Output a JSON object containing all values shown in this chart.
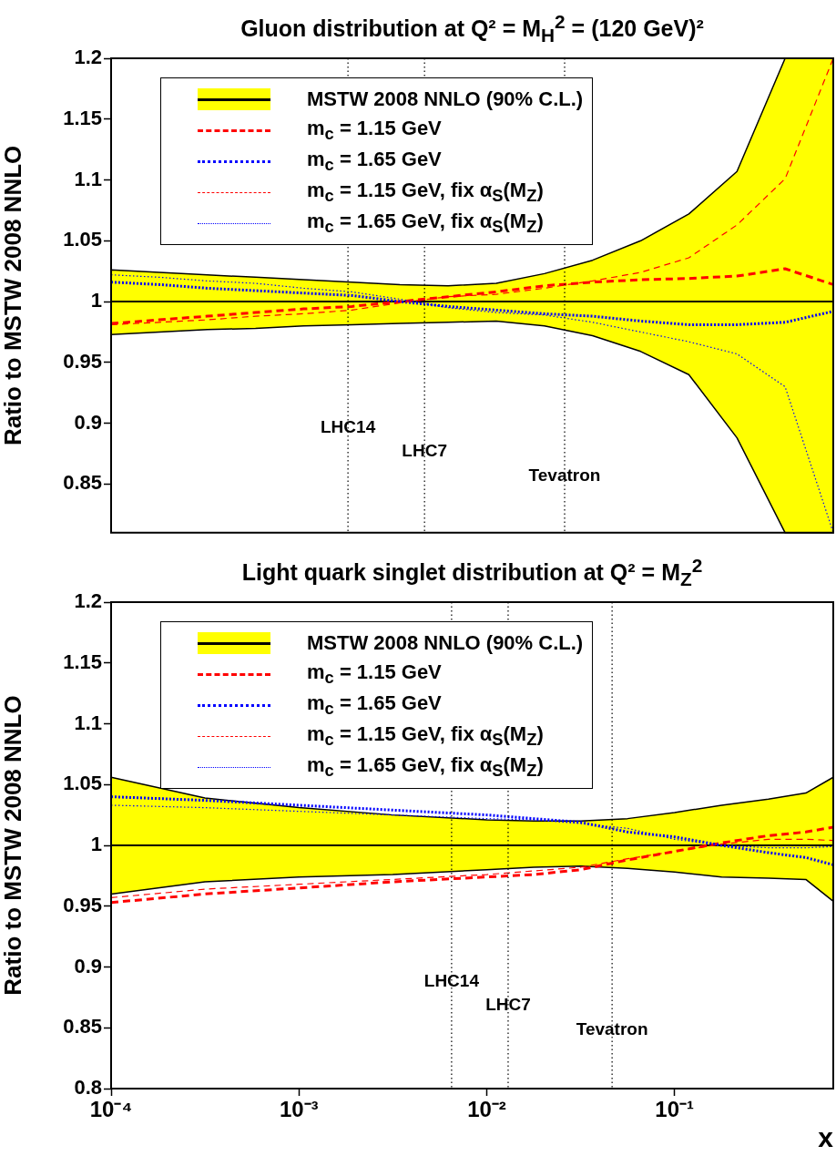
{
  "chart_data": [
    {
      "type": "line",
      "title": "Gluon distribution at Q² = M$_{H}$$^{2}$ = (120 GeV)²",
      "ylabel": "Ratio to MSTW 2008 NNLO",
      "legend": "top left",
      "tick_labels": "y",
      "categories": [
        null,
        null,
        null,
        null,
        null,
        null,
        null,
        null,
        null,
        null,
        null,
        null,
        null,
        null,
        null,
        null
      ],
      "ylim": [
        0.81,
        1.2
      ],
      "yticks": [
        0.85,
        0.9,
        0.95,
        1,
        1.05,
        1.1,
        1.15,
        1.2
      ],
      "series": [
        {
          "name": "MSTW 2008 NNLO (90% C.L.)",
          "color": "#000000",
          "line_style": "solid",
          "values": [
            1,
            1,
            1,
            1,
            1,
            1,
            1,
            1,
            1,
            1,
            1,
            1,
            1,
            1,
            1,
            1
          ],
          "lower": [
            0.973,
            0.975,
            0.977,
            0.978,
            0.98,
            0.981,
            0.982,
            0.983,
            0.984,
            0.98,
            0.972,
            0.959,
            0.94,
            0.888,
            0.81,
            0.81
          ],
          "upper": [
            1.026,
            1.024,
            1.022,
            1.02,
            1.018,
            1.016,
            1.014,
            1.013,
            1.015,
            1.023,
            1.034,
            1.05,
            1.072,
            1.107,
            1.2,
            1.2
          ]
        },
        {
          "name": "m$_{c}$ = 1.15 GeV",
          "color": "#ff0000",
          "line_style": "dashed",
          "values": [
            0.982,
            0.985,
            0.988,
            0.991,
            0.994,
            0.996,
            1,
            1.004,
            1.008,
            1.013,
            1.016,
            1.018,
            1.019,
            1.021,
            1.027,
            1.014
          ]
        },
        {
          "name": "m$_{c}$ = 1.65 GeV",
          "color": "#0000ff",
          "line_style": "dotted",
          "values": [
            1.016,
            1.014,
            1.011,
            1.009,
            1.007,
            1.005,
            1,
            0.996,
            0.993,
            0.99,
            0.988,
            0.984,
            0.981,
            0.981,
            0.983,
            0.992
          ]
        },
        {
          "name": "m$_{c}$ = 1.15 GeV, fix α$_{S}$(M$_{Z}$)",
          "color": "#ff0000",
          "line_style": "dashed",
          "values": [
            0.981,
            0.983,
            0.985,
            0.988,
            0.99,
            0.993,
            0.999,
            1.004,
            1.006,
            1.011,
            1.017,
            1.024,
            1.036,
            1.063,
            1.101,
            1.2
          ]
        },
        {
          "name": "m$_{c}$ = 1.65 GeV, fix α$_{S}$(M$_{Z}$)",
          "color": "#0000ff",
          "line_style": "dotted",
          "values": [
            1.022,
            1.02,
            1.017,
            1.015,
            1.011,
            1.008,
            1.002,
            0.995,
            0.991,
            0.989,
            0.983,
            0.975,
            0.967,
            0.957,
            0.93,
            0.81
          ]
        }
      ],
      "annotations": [
        "LHC14",
        "LHC7",
        "Tevatron"
      ]
    },
    {
      "type": "line",
      "title": "Light quark singlet distribution at Q² = M$_{Z}$$^{2}$",
      "ylabel": "Ratio to MSTW 2008 NNLO",
      "xlabel": "x",
      "legend": "top left",
      "log": "x",
      "x": [
        0.0001,
        0.000316,
        0.001,
        0.00316,
        0.01,
        0.0178,
        0.0316,
        0.0562,
        0.1,
        0.178,
        0.316,
        0.5,
        0.7
      ],
      "xlim": [
        0.0001,
        0.7
      ],
      "xticks": [
        {
          "value": 0.0001,
          "label": "10⁻⁴"
        },
        {
          "value": 0.001,
          "label": "10⁻³"
        },
        {
          "value": 0.01,
          "label": "10⁻²"
        },
        {
          "value": 0.1,
          "label": "10⁻¹"
        }
      ],
      "ylim": [
        0.8,
        1.2
      ],
      "yticks": [
        0.8,
        0.85,
        0.9,
        0.95,
        1,
        1.05,
        1.1,
        1.15,
        1.2
      ],
      "series": [
        {
          "name": "MSTW 2008 NNLO (90% C.L.)",
          "color": "#000000",
          "line_style": "solid",
          "values": [
            1,
            1,
            1,
            1,
            1,
            1,
            1,
            1,
            1,
            1,
            1,
            1,
            1
          ],
          "lower": [
            0.96,
            0.97,
            0.974,
            0.976,
            0.98,
            0.982,
            0.983,
            0.981,
            0.978,
            0.974,
            0.973,
            0.972,
            0.954
          ],
          "upper": [
            1.056,
            1.039,
            1.031,
            1.025,
            1.021,
            1.02,
            1.02,
            1.022,
            1.027,
            1.033,
            1.038,
            1.043,
            1.056
          ]
        },
        {
          "name": "m$_{c}$ = 1.15 GeV",
          "color": "#ff0000",
          "line_style": "dashed",
          "values": [
            0.953,
            0.96,
            0.965,
            0.97,
            0.974,
            0.976,
            0.98,
            0.988,
            0.995,
            1.002,
            1.008,
            1.011,
            1.015
          ]
        },
        {
          "name": "m$_{c}$ = 1.65 GeV",
          "color": "#0000ff",
          "line_style": "dotted",
          "values": [
            1.04,
            1.037,
            1.033,
            1.029,
            1.025,
            1.022,
            1.019,
            1.011,
            1.007,
            1,
            0.994,
            0.99,
            0.984
          ]
        },
        {
          "name": "m$_{c}$ = 1.15 GeV, fix α$_{S}$(M$_{Z}$)",
          "color": "#ff0000",
          "line_style": "dashed",
          "values": [
            0.957,
            0.964,
            0.968,
            0.972,
            0.976,
            0.979,
            0.982,
            0.989,
            0.995,
            1.001,
            1.005,
            1.005,
            1.004
          ]
        },
        {
          "name": "m$_{c}$ = 1.65 GeV, fix α$_{S}$(M$_{Z}$)",
          "color": "#0000ff",
          "line_style": "dotted",
          "values": [
            1.033,
            1.031,
            1.028,
            1.025,
            1.022,
            1.021,
            1.018,
            1.014,
            1.005,
            1,
            0.998,
            0.998,
            0.999
          ]
        }
      ],
      "ref_lines": [
        {
          "axis": "x",
          "value": 0.0065,
          "label": "LHC14",
          "color": "#000000",
          "line_style": "dotted"
        },
        {
          "axis": "x",
          "value": 0.013,
          "label": "LHC7",
          "color": "#000000",
          "line_style": "dotted"
        },
        {
          "axis": "x",
          "value": 0.0465,
          "label": "Tevatron",
          "color": "#000000",
          "line_style": "dotted"
        }
      ]
    }
  ]
}
